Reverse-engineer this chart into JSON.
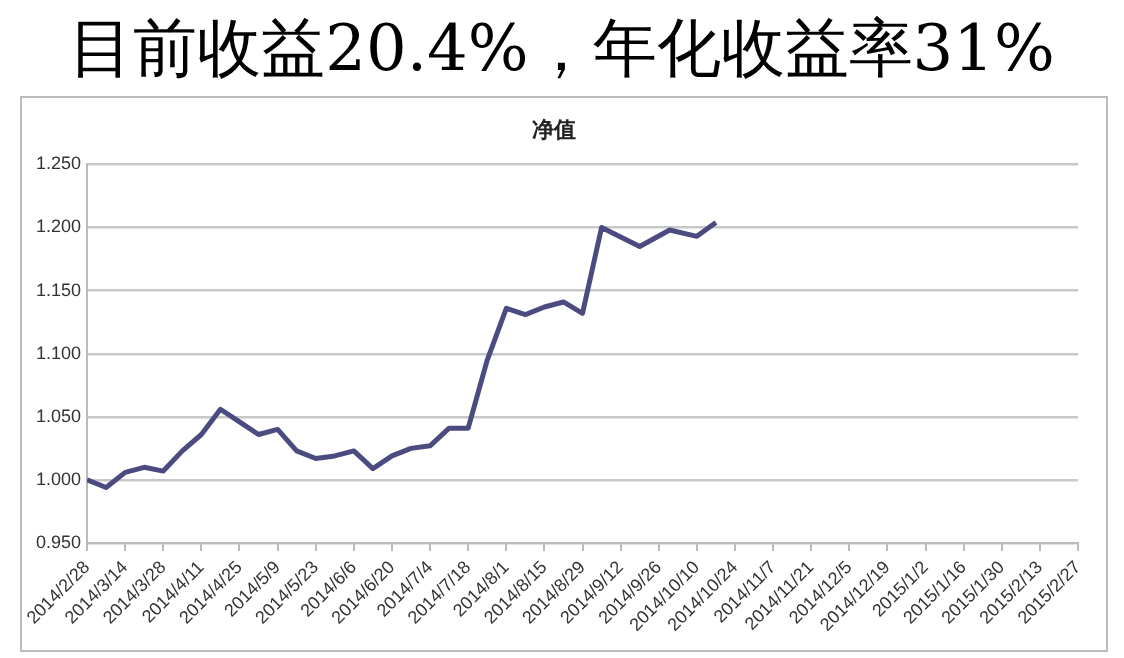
{
  "chart_data": {
    "type": "line",
    "title": "目前收益20.4%，年化收益率31%",
    "subtitle": "净值",
    "x": [
      "2014-02-28",
      "2014-03-07",
      "2014-03-14",
      "2014-03-21",
      "2014-03-28",
      "2014-04-04",
      "2014-04-11",
      "2014-04-18",
      "2014-04-25",
      "2014-05-02",
      "2014-05-09",
      "2014-05-16",
      "2014-05-23",
      "2014-05-30",
      "2014-06-06",
      "2014-06-13",
      "2014-06-20",
      "2014-06-27",
      "2014-07-04",
      "2014-07-11",
      "2014-07-18",
      "2014-07-25",
      "2014-08-01",
      "2014-08-08",
      "2014-08-15",
      "2014-08-22",
      "2014-08-29",
      "2014-09-05",
      "2014-09-19",
      "2014-09-30",
      "2014-10-10",
      "2014-10-17"
    ],
    "series": [
      {
        "color": "#4b4b80",
        "values": [
          1.0,
          0.994,
          1.006,
          1.01,
          1.007,
          1.023,
          1.036,
          1.056,
          1.046,
          1.036,
          1.04,
          1.023,
          1.017,
          1.019,
          1.023,
          1.009,
          1.019,
          1.025,
          1.027,
          1.041,
          1.041,
          1.095,
          1.136,
          1.131,
          1.137,
          1.141,
          1.132,
          1.2,
          1.185,
          1.198,
          1.193,
          1.204
        ]
      }
    ],
    "xlim": [
      "2014-02-28",
      "2015-02-27"
    ],
    "xticks": [
      {
        "value": "2014-02-28",
        "label": "2014/2/28"
      },
      {
        "value": "2014-03-14",
        "label": "2014/3/14"
      },
      {
        "value": "2014-03-28",
        "label": "2014/3/28"
      },
      {
        "value": "2014-04-11",
        "label": "2014/4/11"
      },
      {
        "value": "2014-04-25",
        "label": "2014/4/25"
      },
      {
        "value": "2014-05-09",
        "label": "2014/5/9"
      },
      {
        "value": "2014-05-23",
        "label": "2014/5/23"
      },
      {
        "value": "2014-06-06",
        "label": "2014/6/6"
      },
      {
        "value": "2014-06-20",
        "label": "2014/6/20"
      },
      {
        "value": "2014-07-04",
        "label": "2014/7/4"
      },
      {
        "value": "2014-07-18",
        "label": "2014/7/18"
      },
      {
        "value": "2014-08-01",
        "label": "2014/8/1"
      },
      {
        "value": "2014-08-15",
        "label": "2014/8/15"
      },
      {
        "value": "2014-08-29",
        "label": "2014/8/29"
      },
      {
        "value": "2014-09-12",
        "label": "2014/9/12"
      },
      {
        "value": "2014-09-26",
        "label": "2014/9/26"
      },
      {
        "value": "2014-10-10",
        "label": "2014/10/10"
      },
      {
        "value": "2014-10-24",
        "label": "2014/10/24"
      },
      {
        "value": "2014-11-07",
        "label": "2014/11/7"
      },
      {
        "value": "2014-11-21",
        "label": "2014/11/21"
      },
      {
        "value": "2014-12-05",
        "label": "2014/12/5"
      },
      {
        "value": "2014-12-19",
        "label": "2014/12/19"
      },
      {
        "value": "2015-01-02",
        "label": "2015/1/2"
      },
      {
        "value": "2015-01-16",
        "label": "2015/1/16"
      },
      {
        "value": "2015-01-30",
        "label": "2015/1/30"
      },
      {
        "value": "2015-02-13",
        "label": "2015/2/13"
      },
      {
        "value": "2015-02-27",
        "label": "2015/2/27"
      }
    ],
    "ylim": [
      0.95,
      1.25
    ],
    "yticks": [
      {
        "value": 0.95,
        "label": "0.950"
      },
      {
        "value": 1.0,
        "label": "1.000"
      },
      {
        "value": 1.05,
        "label": "1.050"
      },
      {
        "value": 1.1,
        "label": "1.100"
      },
      {
        "value": 1.15,
        "label": "1.150"
      },
      {
        "value": 1.2,
        "label": "1.200"
      },
      {
        "value": 1.25,
        "label": "1.250"
      }
    ],
    "grid": "y",
    "legend": false,
    "marker": "none",
    "line_style": "solid"
  }
}
